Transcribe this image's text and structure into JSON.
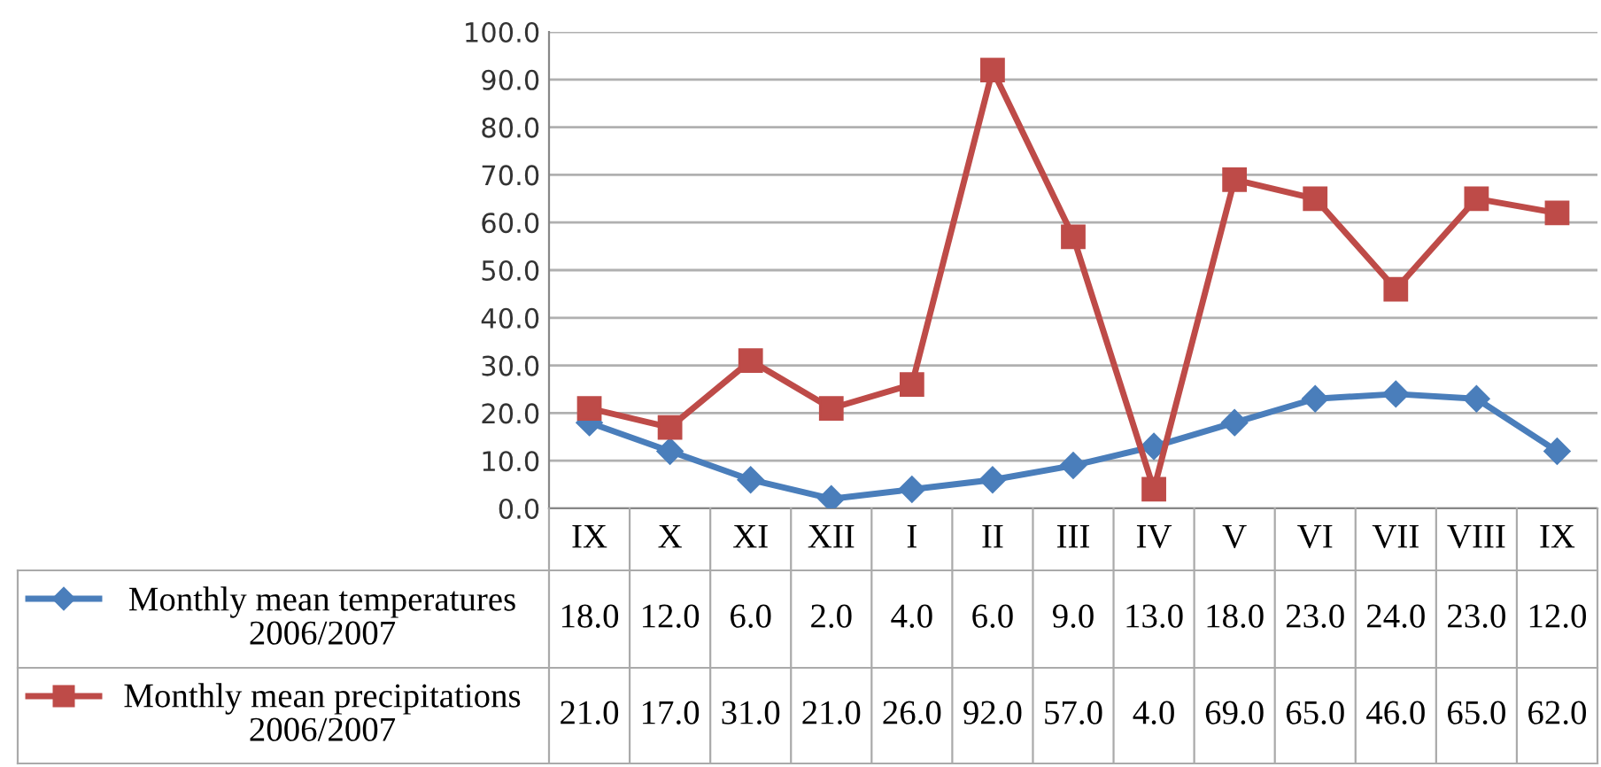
{
  "chart_data": {
    "type": "line",
    "categories": [
      "IX",
      "X",
      "XI",
      "XII",
      "I",
      "II",
      "III",
      "IV",
      "V",
      "VI",
      "VII",
      "VIII",
      "IX"
    ],
    "series": [
      {
        "name": "Monthly mean temperatures\n2006/2007",
        "color": "#4a7ebb",
        "marker": "diamond",
        "values": [
          18.0,
          12.0,
          6.0,
          2.0,
          4.0,
          6.0,
          9.0,
          13.0,
          18.0,
          23.0,
          24.0,
          23.0,
          12.0
        ],
        "value_labels": [
          "18.0",
          "12.0",
          "6.0",
          "2.0",
          "4.0",
          "6.0",
          "9.0",
          "13.0",
          "18.0",
          "23.0",
          "24.0",
          "23.0",
          "12.0"
        ]
      },
      {
        "name": "Monthly mean precipitations\n2006/2007",
        "color": "#be4b48",
        "marker": "square",
        "values": [
          21.0,
          17.0,
          31.0,
          21.0,
          26.0,
          92.0,
          57.0,
          4.0,
          69.0,
          65.0,
          46.0,
          65.0,
          62.0
        ],
        "value_labels": [
          "21.0",
          "17.0",
          "31.0",
          "21.0",
          "26.0",
          "92.0",
          "57.0",
          "4.0",
          "69.0",
          "65.0",
          "46.0",
          "65.0",
          "62.0"
        ]
      }
    ],
    "ylim": [
      0,
      100
    ],
    "yticks": [
      {
        "value": 0,
        "label": "0.0"
      },
      {
        "value": 10,
        "label": "10.0"
      },
      {
        "value": 20,
        "label": "20.0"
      },
      {
        "value": 30,
        "label": "30.0"
      },
      {
        "value": 40,
        "label": "40.0"
      },
      {
        "value": 50,
        "label": "50.0"
      },
      {
        "value": 60,
        "label": "60.0"
      },
      {
        "value": 70,
        "label": "70.0"
      },
      {
        "value": 80,
        "label": "80.0"
      },
      {
        "value": 90,
        "label": "90.0"
      },
      {
        "value": 100,
        "label": "100.0"
      }
    ],
    "grid": "y",
    "legend": "bottom left",
    "line_style": "solid"
  }
}
